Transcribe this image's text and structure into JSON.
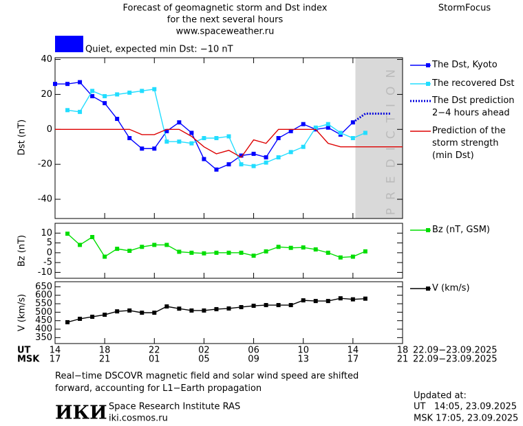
{
  "header": {
    "title_lines": [
      "Forecast of geomagnetic storm and Dst index",
      "for the next several hours",
      "www.spaceweather.ru"
    ],
    "brand": "StormFocus",
    "status": {
      "text": "Quiet, expected min Dst: −10 nT",
      "color": "#0000ff"
    }
  },
  "chart_data": [
    {
      "type": "line",
      "ylabel": "Dst (nT)",
      "xlim": [
        0,
        28
      ],
      "ylim": [
        -51,
        41
      ],
      "yticks": [
        40,
        20,
        0,
        -20,
        -40
      ],
      "prediction_zone": {
        "label": "PREDICTION",
        "x": [
          24.2,
          28
        ],
        "color": "#d9d9d9"
      },
      "series": [
        {
          "name": "The Dst, Kyoto",
          "color": "#0000ff",
          "marker": true,
          "x": [
            0,
            1,
            2,
            3,
            4,
            5,
            6,
            7,
            8,
            9,
            10,
            11,
            12,
            13,
            14,
            15,
            16,
            17,
            18,
            19,
            20,
            21,
            22,
            23,
            24
          ],
          "values": [
            26,
            26,
            27,
            19,
            15,
            6,
            -5,
            -11,
            -11,
            -1,
            4,
            -2,
            -17,
            -23,
            -20,
            -15,
            -14,
            -16,
            -5,
            -1,
            3,
            0,
            1,
            -3,
            4
          ]
        },
        {
          "name": "The recovered Dst",
          "color": "#22ddff",
          "marker": true,
          "x": [
            1,
            2,
            3,
            4,
            5,
            6,
            7,
            8,
            9,
            10,
            11,
            12,
            13,
            14,
            15,
            16,
            17,
            18,
            19,
            20,
            21,
            22,
            23,
            24,
            25
          ],
          "values": [
            11,
            10,
            22,
            19,
            20,
            21,
            22,
            23,
            -7,
            -7,
            -8,
            -5,
            -5,
            -4,
            -20,
            -21,
            -19,
            -16,
            -13,
            -10,
            1,
            3,
            -2,
            -5,
            -2
          ]
        },
        {
          "name": "The Dst prediction\n2−4 hours ahead",
          "color": "#0000dd",
          "marker": false,
          "dash": "dotted",
          "x": [
            24,
            25,
            26,
            27
          ],
          "values": [
            4,
            9,
            9,
            9
          ]
        },
        {
          "name": "Prediction of the\nstorm strength\n(min Dst)",
          "color": "#dd0000",
          "marker": false,
          "x": [
            0,
            1,
            2,
            3,
            4,
            5,
            6,
            7,
            8,
            9,
            10,
            11,
            12,
            13,
            14,
            15,
            16,
            17,
            18,
            19,
            20,
            21,
            22,
            23,
            24,
            25,
            26,
            27,
            28
          ],
          "values": [
            0,
            0,
            0,
            0,
            0,
            0,
            0,
            -3,
            -3,
            0,
            0,
            -4,
            -10,
            -14,
            -12,
            -16,
            -6,
            -8,
            0,
            0,
            0,
            0,
            -8,
            -10,
            -10,
            -10,
            -10,
            -10,
            -10
          ]
        }
      ]
    },
    {
      "type": "line",
      "ylabel": "Bz (nT)",
      "xlim": [
        0,
        28
      ],
      "ylim": [
        -13,
        15
      ],
      "yticks": [
        10,
        5,
        0,
        -5,
        -10
      ],
      "series": [
        {
          "name": "Bz (nT, GSM)",
          "color": "#00dd00",
          "marker": true,
          "x": [
            1,
            2,
            3,
            4,
            5,
            6,
            7,
            8,
            9,
            10,
            11,
            12,
            13,
            14,
            15,
            16,
            17,
            18,
            19,
            20,
            21,
            22,
            23,
            24,
            25
          ],
          "values": [
            9.7,
            4,
            8,
            -2,
            2,
            1,
            3,
            4,
            4,
            0.5,
            0,
            -0.3,
            0,
            0,
            0,
            -1.5,
            0.7,
            3,
            2.5,
            2.7,
            1.7,
            0,
            -2.4,
            -2,
            0.7
          ]
        }
      ]
    },
    {
      "type": "line",
      "ylabel": "V (km/s)",
      "xlim": [
        0,
        28
      ],
      "ylim": [
        315,
        680
      ],
      "yticks": [
        650,
        600,
        550,
        500,
        450,
        400,
        350
      ],
      "xticks": [
        {
          "value": 0,
          "label": "14"
        },
        {
          "value": 4,
          "label": "18"
        },
        {
          "value": 8,
          "label": "22"
        },
        {
          "value": 12,
          "label": "02"
        },
        {
          "value": 16,
          "label": "06"
        },
        {
          "value": 20,
          "label": "10"
        },
        {
          "value": 24,
          "label": "14"
        },
        {
          "value": 28,
          "label": "18"
        }
      ],
      "msk_ticks": [
        {
          "value": 0,
          "label": "17"
        },
        {
          "value": 4,
          "label": "21"
        },
        {
          "value": 8,
          "label": "01"
        },
        {
          "value": 12,
          "label": "05"
        },
        {
          "value": 16,
          "label": "09"
        },
        {
          "value": 20,
          "label": "13"
        },
        {
          "value": 24,
          "label": "17"
        },
        {
          "value": 28,
          "label": "21"
        }
      ],
      "ut_label": "UT",
      "msk_label": "MSK",
      "ut_range": "22.09−23.09.2025",
      "msk_range": "22.09−23.09.2025",
      "series": [
        {
          "name": "V (km/s)",
          "color": "#000000",
          "marker": true,
          "x": [
            1,
            2,
            3,
            4,
            5,
            6,
            7,
            8,
            9,
            10,
            11,
            12,
            13,
            14,
            15,
            16,
            17,
            18,
            19,
            20,
            21,
            22,
            23,
            24,
            25
          ],
          "values": [
            441,
            461,
            473,
            485,
            505,
            510,
            497,
            497,
            534,
            521,
            510,
            510,
            518,
            522,
            530,
            538,
            542,
            542,
            542,
            570,
            566,
            566,
            582,
            576,
            580
          ]
        }
      ]
    }
  ],
  "footer": {
    "note": "Real−time DSCOVR magnetic field and solar wind speed are shifted\nforward, accounting for L1−Earth propagation",
    "logo": "ИКИ",
    "institute": "Space Research Institute RAS",
    "site": "iki.cosmos.ru",
    "updated": "Updated at:",
    "updated_ut": "UT   14:05, 23.09.2025",
    "updated_msk": "MSK 17:05, 23.09.2025"
  }
}
